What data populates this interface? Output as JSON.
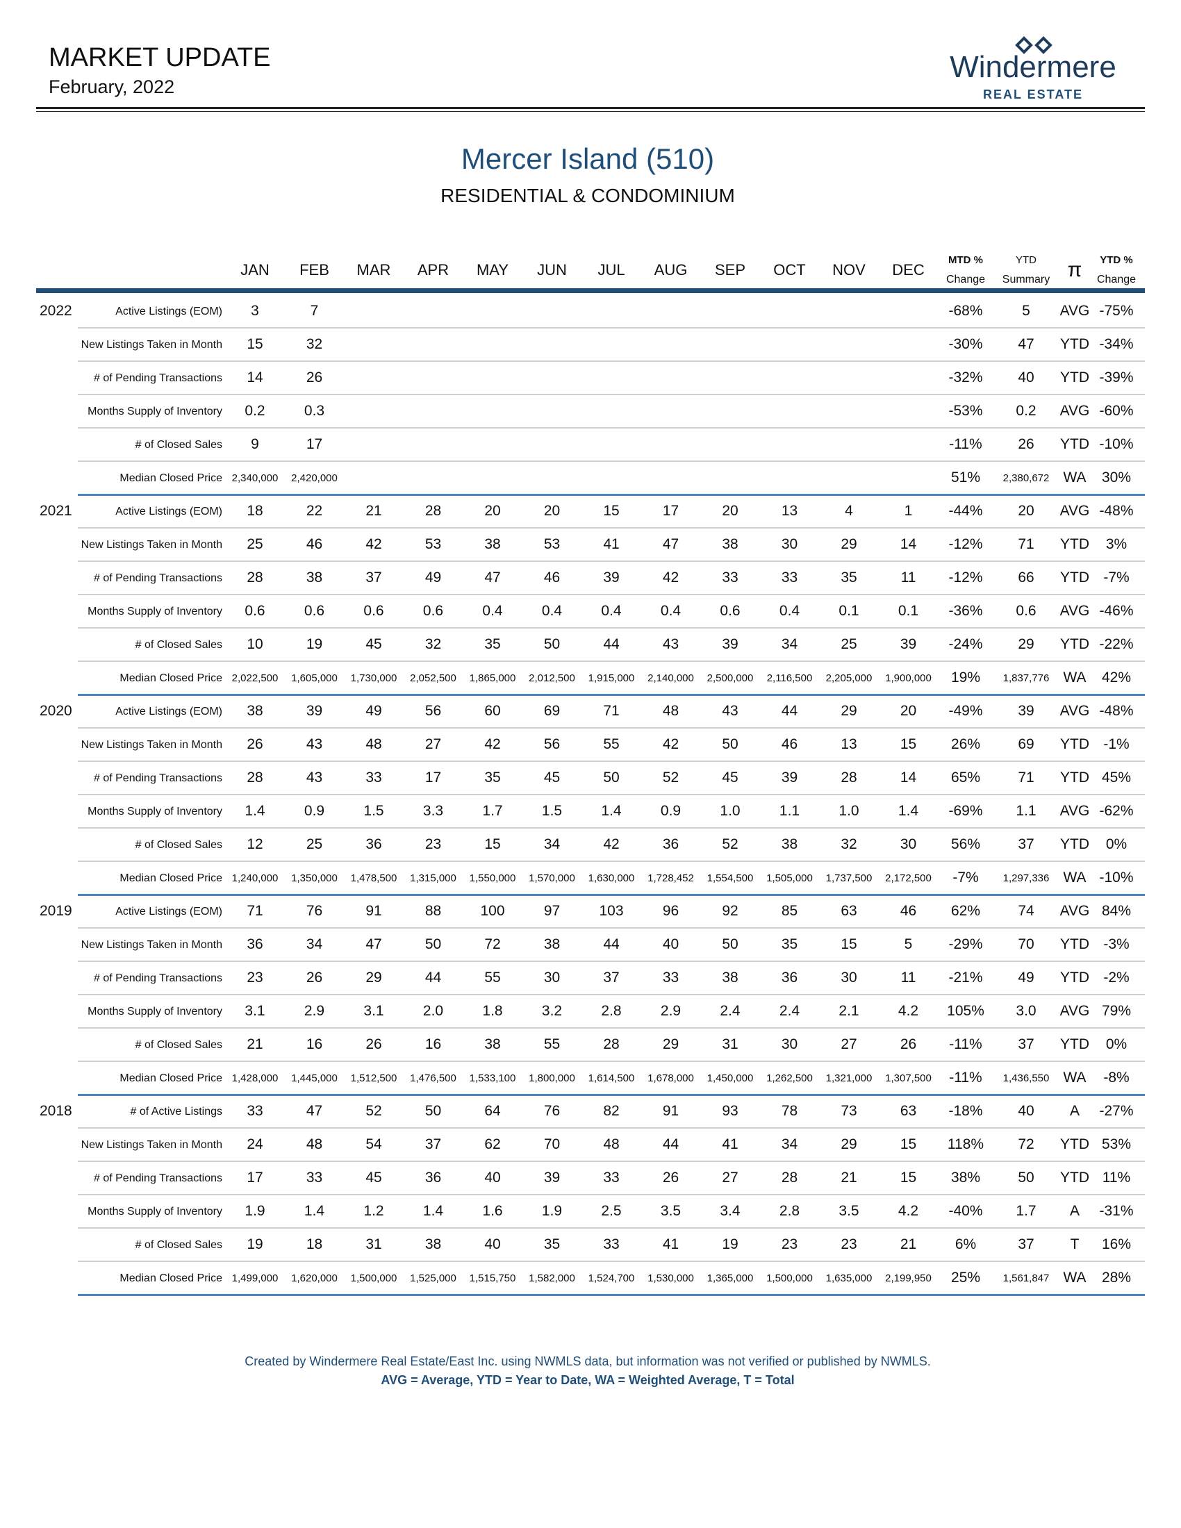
{
  "header": {
    "title": "MARKET UPDATE",
    "date": "February, 2022",
    "logo": {
      "name": "Windermere",
      "tagline": "REAL ESTATE"
    }
  },
  "report": {
    "title": "Mercer Island (510)",
    "subtitle": "RESIDENTIAL & CONDOMINIUM"
  },
  "table": {
    "months": [
      "JAN",
      "FEB",
      "MAR",
      "APR",
      "MAY",
      "JUN",
      "JUL",
      "AUG",
      "SEP",
      "OCT",
      "NOV",
      "DEC"
    ],
    "summary_headers": [
      {
        "top": "MTD %",
        "bottom": "Change"
      },
      {
        "top": "YTD",
        "bottom": "Summary"
      },
      {
        "top": "π"
      },
      {
        "top": "YTD %",
        "bottom": "Change"
      }
    ],
    "groups": [
      {
        "year": "2022",
        "rows": [
          {
            "label": "Active Listings (EOM)",
            "months": [
              "3",
              "7"
            ],
            "mtd": "-68%",
            "ytd": "5",
            "kind": "AVG",
            "ytd_change": "-75%"
          },
          {
            "label": "New Listings Taken in Month",
            "months": [
              "15",
              "32"
            ],
            "mtd": "-30%",
            "ytd": "47",
            "kind": "YTD",
            "ytd_change": "-34%"
          },
          {
            "label": "# of Pending Transactions",
            "months": [
              "14",
              "26"
            ],
            "mtd": "-32%",
            "ytd": "40",
            "kind": "YTD",
            "ytd_change": "-39%"
          },
          {
            "label": "Months Supply of Inventory",
            "months": [
              "0.2",
              "0.3"
            ],
            "mtd": "-53%",
            "ytd": "0.2",
            "kind": "AVG",
            "ytd_change": "-60%"
          },
          {
            "label": "# of Closed Sales",
            "months": [
              "9",
              "17"
            ],
            "mtd": "-11%",
            "ytd": "26",
            "kind": "YTD",
            "ytd_change": "-10%"
          },
          {
            "label": "Median Closed Price",
            "months": [
              "2,340,000",
              "2,420,000"
            ],
            "mtd": "51%",
            "ytd": "2,380,672",
            "kind": "WA",
            "ytd_change": "30%"
          }
        ]
      },
      {
        "year": "2021",
        "rows": [
          {
            "label": "Active Listings (EOM)",
            "months": [
              "18",
              "22",
              "21",
              "28",
              "20",
              "20",
              "15",
              "17",
              "20",
              "13",
              "4",
              "1"
            ],
            "mtd": "-44%",
            "ytd": "20",
            "kind": "AVG",
            "ytd_change": "-48%"
          },
          {
            "label": "New Listings Taken in Month",
            "months": [
              "25",
              "46",
              "42",
              "53",
              "38",
              "53",
              "41",
              "47",
              "38",
              "30",
              "29",
              "14"
            ],
            "mtd": "-12%",
            "ytd": "71",
            "kind": "YTD",
            "ytd_change": "3%"
          },
          {
            "label": "# of Pending Transactions",
            "months": [
              "28",
              "38",
              "37",
              "49",
              "47",
              "46",
              "39",
              "42",
              "33",
              "33",
              "35",
              "11"
            ],
            "mtd": "-12%",
            "ytd": "66",
            "kind": "YTD",
            "ytd_change": "-7%"
          },
          {
            "label": "Months Supply of Inventory",
            "months": [
              "0.6",
              "0.6",
              "0.6",
              "0.6",
              "0.4",
              "0.4",
              "0.4",
              "0.4",
              "0.6",
              "0.4",
              "0.1",
              "0.1"
            ],
            "mtd": "-36%",
            "ytd": "0.6",
            "kind": "AVG",
            "ytd_change": "-46%"
          },
          {
            "label": "# of Closed Sales",
            "months": [
              "10",
              "19",
              "45",
              "32",
              "35",
              "50",
              "44",
              "43",
              "39",
              "34",
              "25",
              "39"
            ],
            "mtd": "-24%",
            "ytd": "29",
            "kind": "YTD",
            "ytd_change": "-22%"
          },
          {
            "label": "Median Closed Price",
            "months": [
              "2,022,500",
              "1,605,000",
              "1,730,000",
              "2,052,500",
              "1,865,000",
              "2,012,500",
              "1,915,000",
              "2,140,000",
              "2,500,000",
              "2,116,500",
              "2,205,000",
              "1,900,000"
            ],
            "mtd": "19%",
            "ytd": "1,837,776",
            "kind": "WA",
            "ytd_change": "42%"
          }
        ]
      },
      {
        "year": "2020",
        "rows": [
          {
            "label": "Active Listings (EOM)",
            "months": [
              "38",
              "39",
              "49",
              "56",
              "60",
              "69",
              "71",
              "48",
              "43",
              "44",
              "29",
              "20"
            ],
            "mtd": "-49%",
            "ytd": "39",
            "kind": "AVG",
            "ytd_change": "-48%"
          },
          {
            "label": "New Listings Taken in Month",
            "months": [
              "26",
              "43",
              "48",
              "27",
              "42",
              "56",
              "55",
              "42",
              "50",
              "46",
              "13",
              "15"
            ],
            "mtd": "26%",
            "ytd": "69",
            "kind": "YTD",
            "ytd_change": "-1%"
          },
          {
            "label": "# of Pending Transactions",
            "months": [
              "28",
              "43",
              "33",
              "17",
              "35",
              "45",
              "50",
              "52",
              "45",
              "39",
              "28",
              "14"
            ],
            "mtd": "65%",
            "ytd": "71",
            "kind": "YTD",
            "ytd_change": "45%"
          },
          {
            "label": "Months Supply of Inventory",
            "months": [
              "1.4",
              "0.9",
              "1.5",
              "3.3",
              "1.7",
              "1.5",
              "1.4",
              "0.9",
              "1.0",
              "1.1",
              "1.0",
              "1.4"
            ],
            "mtd": "-69%",
            "ytd": "1.1",
            "kind": "AVG",
            "ytd_change": "-62%"
          },
          {
            "label": "# of Closed Sales",
            "months": [
              "12",
              "25",
              "36",
              "23",
              "15",
              "34",
              "42",
              "36",
              "52",
              "38",
              "32",
              "30"
            ],
            "mtd": "56%",
            "ytd": "37",
            "kind": "YTD",
            "ytd_change": "0%"
          },
          {
            "label": "Median Closed Price",
            "months": [
              "1,240,000",
              "1,350,000",
              "1,478,500",
              "1,315,000",
              "1,550,000",
              "1,570,000",
              "1,630,000",
              "1,728,452",
              "1,554,500",
              "1,505,000",
              "1,737,500",
              "2,172,500"
            ],
            "mtd": "-7%",
            "ytd": "1,297,336",
            "kind": "WA",
            "ytd_change": "-10%"
          }
        ]
      },
      {
        "year": "2019",
        "rows": [
          {
            "label": "Active Listings (EOM)",
            "months": [
              "71",
              "76",
              "91",
              "88",
              "100",
              "97",
              "103",
              "96",
              "92",
              "85",
              "63",
              "46"
            ],
            "mtd": "62%",
            "ytd": "74",
            "kind": "AVG",
            "ytd_change": "84%"
          },
          {
            "label": "New Listings Taken in Month",
            "months": [
              "36",
              "34",
              "47",
              "50",
              "72",
              "38",
              "44",
              "40",
              "50",
              "35",
              "15",
              "5"
            ],
            "mtd": "-29%",
            "ytd": "70",
            "kind": "YTD",
            "ytd_change": "-3%"
          },
          {
            "label": "# of Pending Transactions",
            "months": [
              "23",
              "26",
              "29",
              "44",
              "55",
              "30",
              "37",
              "33",
              "38",
              "36",
              "30",
              "11"
            ],
            "mtd": "-21%",
            "ytd": "49",
            "kind": "YTD",
            "ytd_change": "-2%"
          },
          {
            "label": "Months Supply of Inventory",
            "months": [
              "3.1",
              "2.9",
              "3.1",
              "2.0",
              "1.8",
              "3.2",
              "2.8",
              "2.9",
              "2.4",
              "2.4",
              "2.1",
              "4.2"
            ],
            "mtd": "105%",
            "ytd": "3.0",
            "kind": "AVG",
            "ytd_change": "79%"
          },
          {
            "label": "# of Closed Sales",
            "months": [
              "21",
              "16",
              "26",
              "16",
              "38",
              "55",
              "28",
              "29",
              "31",
              "30",
              "27",
              "26"
            ],
            "mtd": "-11%",
            "ytd": "37",
            "kind": "YTD",
            "ytd_change": "0%"
          },
          {
            "label": "Median Closed Price",
            "months": [
              "1,428,000",
              "1,445,000",
              "1,512,500",
              "1,476,500",
              "1,533,100",
              "1,800,000",
              "1,614,500",
              "1,678,000",
              "1,450,000",
              "1,262,500",
              "1,321,000",
              "1,307,500"
            ],
            "mtd": "-11%",
            "ytd": "1,436,550",
            "kind": "WA",
            "ytd_change": "-8%"
          }
        ]
      },
      {
        "year": "2018",
        "rows": [
          {
            "label": "# of Active Listings",
            "months": [
              "33",
              "47",
              "52",
              "50",
              "64",
              "76",
              "82",
              "91",
              "93",
              "78",
              "73",
              "63"
            ],
            "mtd": "-18%",
            "ytd": "40",
            "kind": "A",
            "ytd_change": "-27%"
          },
          {
            "label": "New Listings Taken in Month",
            "months": [
              "24",
              "48",
              "54",
              "37",
              "62",
              "70",
              "48",
              "44",
              "41",
              "34",
              "29",
              "15"
            ],
            "mtd": "118%",
            "ytd": "72",
            "kind": "YTD",
            "ytd_change": "53%"
          },
          {
            "label": "# of Pending Transactions",
            "months": [
              "17",
              "33",
              "45",
              "36",
              "40",
              "39",
              "33",
              "26",
              "27",
              "28",
              "21",
              "15"
            ],
            "mtd": "38%",
            "ytd": "50",
            "kind": "YTD",
            "ytd_change": "11%"
          },
          {
            "label": "Months Supply of Inventory",
            "months": [
              "1.9",
              "1.4",
              "1.2",
              "1.4",
              "1.6",
              "1.9",
              "2.5",
              "3.5",
              "3.4",
              "2.8",
              "3.5",
              "4.2"
            ],
            "mtd": "-40%",
            "ytd": "1.7",
            "kind": "A",
            "ytd_change": "-31%"
          },
          {
            "label": "# of Closed Sales",
            "months": [
              "19",
              "18",
              "31",
              "38",
              "40",
              "35",
              "33",
              "41",
              "19",
              "23",
              "23",
              "21"
            ],
            "mtd": "6%",
            "ytd": "37",
            "kind": "T",
            "ytd_change": "16%"
          },
          {
            "label": "Median Closed Price",
            "months": [
              "1,499,000",
              "1,620,000",
              "1,500,000",
              "1,525,000",
              "1,515,750",
              "1,582,000",
              "1,524,700",
              "1,530,000",
              "1,365,000",
              "1,500,000",
              "1,635,000",
              "2,199,950"
            ],
            "mtd": "25%",
            "ytd": "1,561,847",
            "kind": "WA",
            "ytd_change": "28%"
          }
        ]
      }
    ]
  },
  "footer": {
    "note": "Created by Windermere Real Estate/East Inc. using NWMLS data, but information was not verified or published by NWMLS.",
    "legend": "AVG = Average, YTD = Year to Date, WA = Weighted Average, T = Total"
  }
}
